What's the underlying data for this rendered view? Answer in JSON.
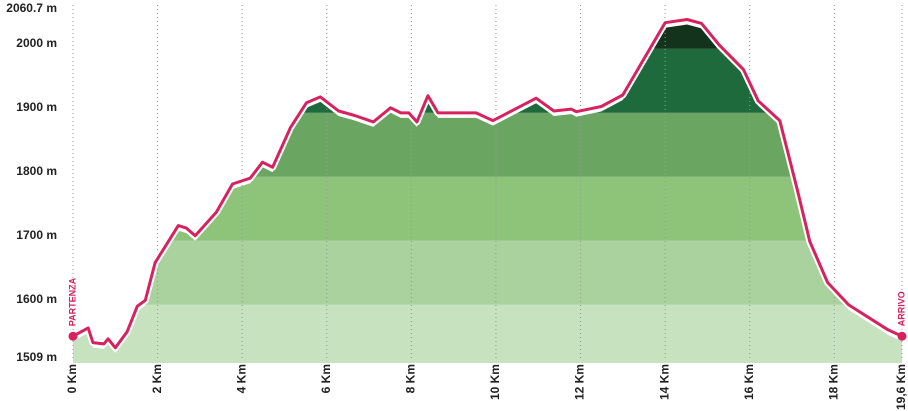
{
  "chart_data": {
    "type": "elevation-profile",
    "x": [
      0,
      0.36,
      0.47,
      0.73,
      0.83,
      1.0,
      1.28,
      1.52,
      1.71,
      1.94,
      2.49,
      2.68,
      2.89,
      3.39,
      3.77,
      4.19,
      4.48,
      4.72,
      5.14,
      5.52,
      5.85,
      6.28,
      6.66,
      7.1,
      7.51,
      7.75,
      7.94,
      8.13,
      8.39,
      8.63,
      9.53,
      9.93,
      10.95,
      11.37,
      11.78,
      11.9,
      12.49,
      13.0,
      14.0,
      14.52,
      14.86,
      15.28,
      15.85,
      16.2,
      16.71,
      17.11,
      17.42,
      17.84,
      18.34,
      19.27,
      19.6
    ],
    "elevation": [
      1543,
      1556,
      1533,
      1531,
      1539,
      1525,
      1550,
      1590,
      1599,
      1658,
      1716,
      1712,
      1700,
      1737,
      1781,
      1790,
      1815,
      1807,
      1869,
      1908,
      1917,
      1895,
      1888,
      1878,
      1900,
      1892,
      1892,
      1878,
      1919,
      1892,
      1892,
      1880,
      1915,
      1895,
      1898,
      1894,
      1902,
      1920,
      2033,
      2038,
      2032,
      1998,
      1960,
      1911,
      1880,
      1776,
      1691,
      1627,
      1592,
      1553,
      1543
    ],
    "line_color": "#d6235e",
    "band_colors": [
      "#c6e2bf",
      "#a9d29e",
      "#8dc47a",
      "#6aa562",
      "#1f6a3d",
      "#14331d"
    ],
    "xlim": [
      0,
      19.6
    ],
    "xticks": [
      {
        "value": 0,
        "label": "0 Km"
      },
      {
        "value": 2,
        "label": "2 Km"
      },
      {
        "value": 4,
        "label": "4 Km"
      },
      {
        "value": 6,
        "label": "6 Km"
      },
      {
        "value": 8,
        "label": "8 Km"
      },
      {
        "value": 10,
        "label": "10 Km"
      },
      {
        "value": 12,
        "label": "12 Km"
      },
      {
        "value": 14,
        "label": "14 Km"
      },
      {
        "value": 16,
        "label": "16 Km"
      },
      {
        "value": 18,
        "label": "18 Km"
      },
      {
        "value": 19.6,
        "label": "19,6 Km"
      }
    ],
    "ylim": [
      1509,
      2060.7
    ],
    "yticks": [
      {
        "value": 1509,
        "label": "1509 m"
      },
      {
        "value": 1600,
        "label": "1600 m"
      },
      {
        "value": 1700,
        "label": "1700 m"
      },
      {
        "value": 1800,
        "label": "1800 m"
      },
      {
        "value": 1900,
        "label": "1900 m"
      },
      {
        "value": 2000,
        "label": "2000 m"
      },
      {
        "value": 2060.7,
        "label": "2060.7 m"
      }
    ],
    "start_label": "PARTENZA",
    "end_label": "ARRIVO",
    "grid": true
  }
}
